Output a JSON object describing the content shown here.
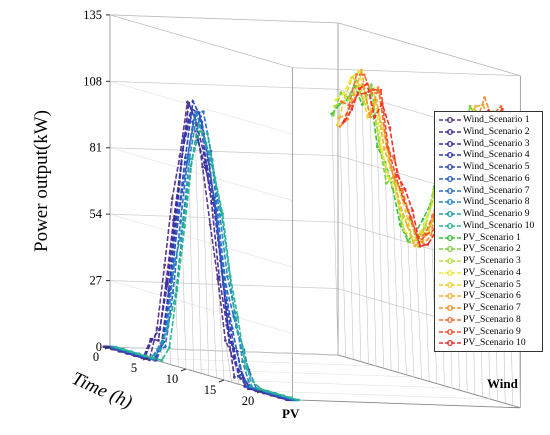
{
  "chart_data": {
    "type": "line",
    "title": "",
    "ylabel": "Power output(kW)",
    "xlabel": "Time (h)",
    "zlabel": "",
    "categories": [
      "PV",
      "Wind"
    ],
    "ylim": [
      0,
      135
    ],
    "yticks": [
      "0",
      "27",
      "54",
      "81",
      "108",
      "135"
    ],
    "xlim": [
      0,
      24
    ],
    "xticks": [
      "0",
      "5",
      "10",
      "15",
      "20"
    ],
    "grid": true,
    "legend_position": "right",
    "hours": [
      0,
      1,
      2,
      3,
      4,
      5,
      6,
      7,
      8,
      9,
      10,
      11,
      12,
      13,
      14,
      15,
      16,
      17,
      18,
      19,
      20,
      21,
      22,
      23,
      24
    ],
    "pv_base": [
      0,
      0,
      0,
      0,
      0,
      0,
      2,
      12,
      35,
      62,
      88,
      103,
      100,
      86,
      68,
      45,
      22,
      8,
      2,
      0,
      0,
      0,
      0,
      0,
      0
    ],
    "wind_base": [
      98,
      102,
      110,
      115,
      106,
      112,
      95,
      80,
      74,
      62,
      58,
      56,
      64,
      78,
      90,
      96,
      100,
      104,
      112,
      116,
      110,
      118,
      112,
      104,
      115
    ],
    "series": [
      {
        "name": "Wind_Scenario 1",
        "color": "#5b3a8c"
      },
      {
        "name": "Wind_Scenario 2",
        "color": "#4b2f9a"
      },
      {
        "name": "Wind_Scenario 3",
        "color": "#3a2fa8"
      },
      {
        "name": "Wind_Scenario 4",
        "color": "#2f38b0"
      },
      {
        "name": "Wind_Scenario 5",
        "color": "#2f4ab8"
      },
      {
        "name": "Wind_Scenario 6",
        "color": "#2a5cc0"
      },
      {
        "name": "Wind_Scenario 7",
        "color": "#2a6ec8"
      },
      {
        "name": "Wind_Scenario 8",
        "color": "#2a88c8"
      },
      {
        "name": "Wind_Scenario 9",
        "color": "#22a0a8"
      },
      {
        "name": "Wind_Scenario 10",
        "color": "#2ab890"
      },
      {
        "name": "PV_Scenario 1",
        "color": "#3cc03c"
      },
      {
        "name": "PV_Scenario 2",
        "color": "#7cd03c"
      },
      {
        "name": "PV_Scenario 3",
        "color": "#b8e03c"
      },
      {
        "name": "PV_Scenario 4",
        "color": "#e8e83c"
      },
      {
        "name": "PV_Scenario 5",
        "color": "#f0d030"
      },
      {
        "name": "PV_Scenario 6",
        "color": "#f0b030"
      },
      {
        "name": "PV_Scenario 7",
        "color": "#f09030"
      },
      {
        "name": "PV_Scenario 8",
        "color": "#f07030"
      },
      {
        "name": "PV_Scenario 9",
        "color": "#f05030"
      },
      {
        "name": "PV_Scenario 10",
        "color": "#f03030"
      }
    ]
  }
}
